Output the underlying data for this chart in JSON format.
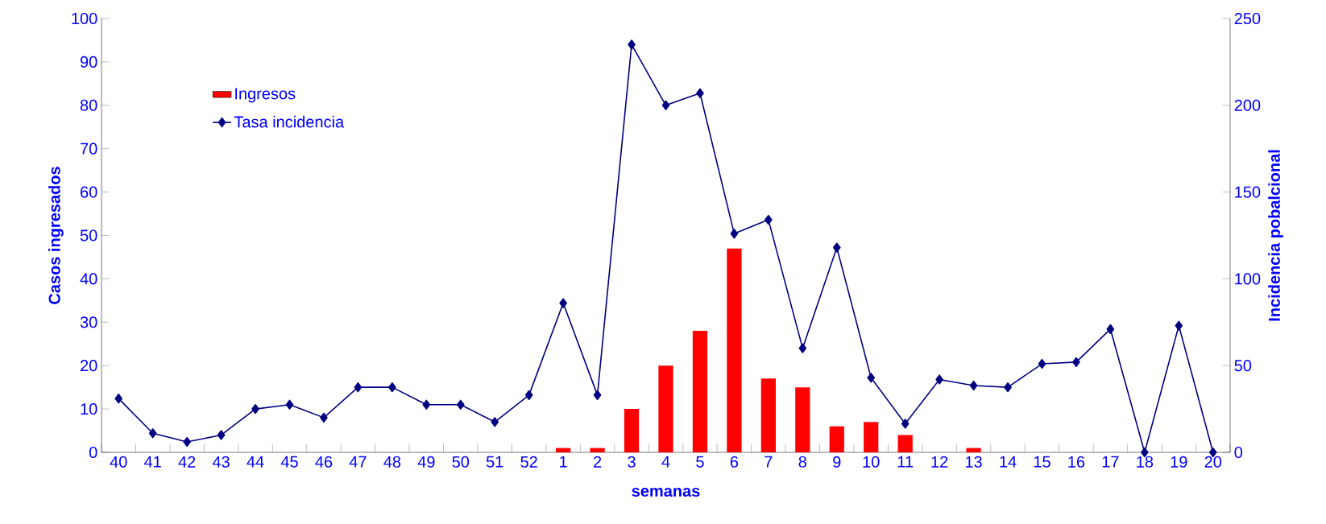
{
  "chart_data": {
    "type": "bar",
    "xlabel": "semanas",
    "ylabel": "Casos ingresados",
    "y2label": "Incidencia pobalcional",
    "categories": [
      "40",
      "41",
      "42",
      "43",
      "44",
      "45",
      "46",
      "47",
      "48",
      "49",
      "50",
      "51",
      "52",
      "1",
      "2",
      "3",
      "4",
      "5",
      "6",
      "7",
      "8",
      "9",
      "10",
      "11",
      "12",
      "13",
      "14",
      "15",
      "16",
      "17",
      "18",
      "19",
      "20"
    ],
    "series": [
      {
        "name": "Ingresos",
        "color": "#ff0000",
        "values": [
          0,
          0,
          0,
          0,
          0,
          0,
          0,
          0,
          0,
          0,
          0,
          0,
          0,
          1,
          1,
          10,
          20,
          28,
          47,
          17,
          15,
          6,
          7,
          4,
          0,
          1,
          0,
          0,
          0,
          0,
          0,
          0,
          0
        ]
      },
      {
        "name": "Tasa incidencia",
        "type": "line",
        "axis": "y2",
        "color": "#000080",
        "values": [
          31,
          11,
          6,
          10,
          25,
          27.5,
          20,
          37.5,
          37.5,
          27.5,
          27.5,
          17.5,
          33,
          86,
          33,
          235,
          200,
          207,
          126,
          134,
          60,
          118,
          43,
          16.5,
          42,
          38.5,
          37.5,
          51,
          52,
          71,
          0,
          73,
          0
        ]
      }
    ],
    "ylim": [
      0,
      100
    ],
    "yticks": [
      0,
      10,
      20,
      30,
      40,
      50,
      60,
      70,
      80,
      90,
      100
    ],
    "y2lim": [
      0,
      250
    ],
    "y2ticks": [
      0,
      50,
      100,
      150,
      200,
      250
    ],
    "legend": "top left",
    "marker": "diamond",
    "grid": false
  }
}
